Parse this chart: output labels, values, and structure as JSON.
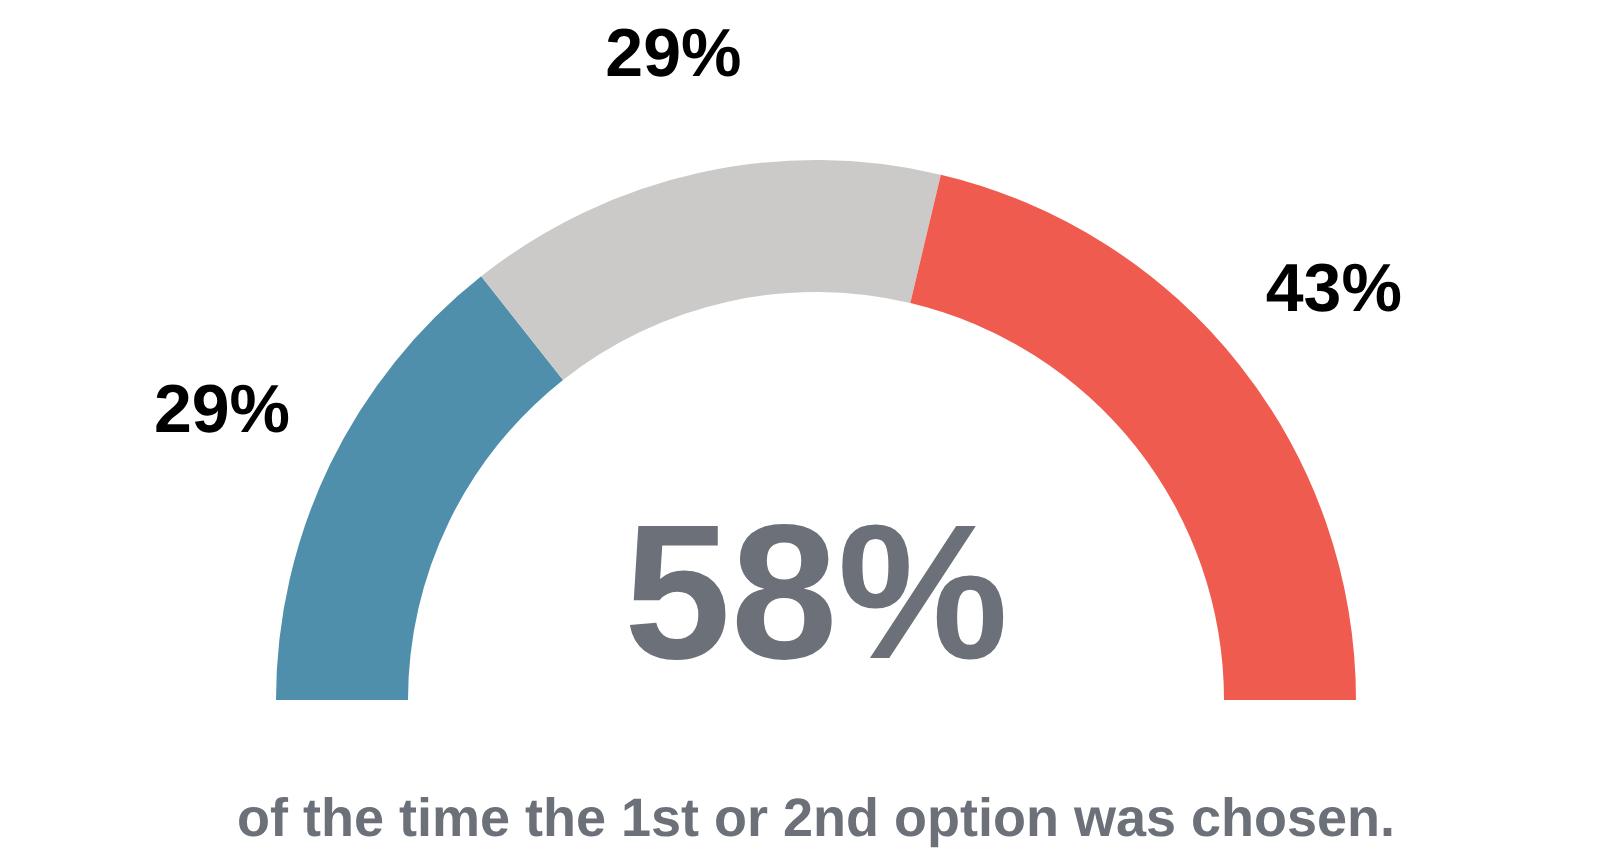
{
  "chart_data": {
    "type": "donut",
    "categories": [
      null,
      null,
      null
    ],
    "values": [
      29,
      29,
      43
    ],
    "colors": [
      "#4f8fab",
      "#cbcac8",
      "#f05b4f"
    ],
    "value_labels": [
      "29%",
      "29%",
      "43%"
    ],
    "annotations": [
      "58%",
      "of the time the 1st or 2nd option was chosen."
    ]
  }
}
